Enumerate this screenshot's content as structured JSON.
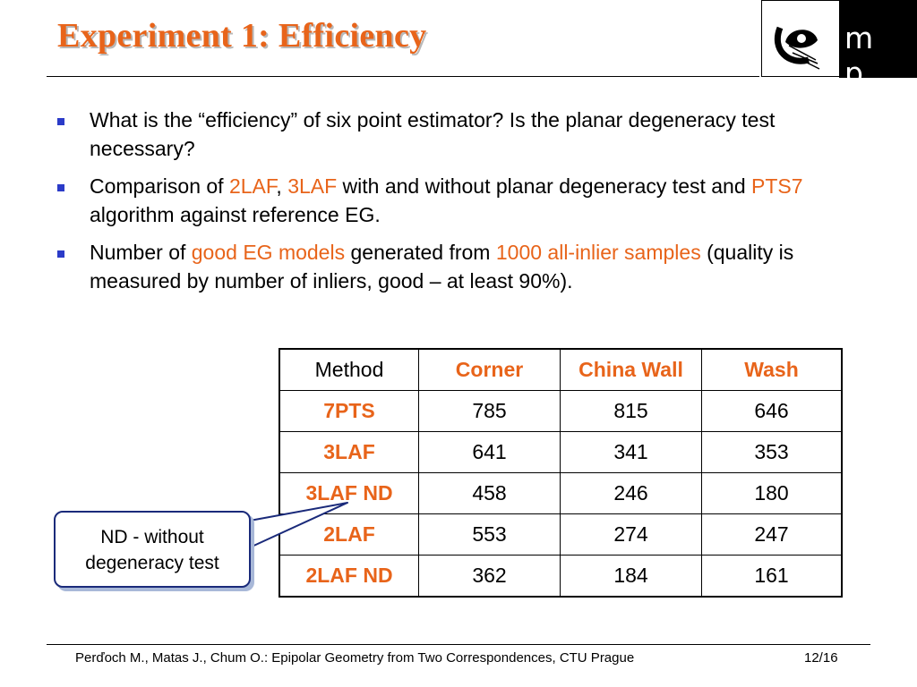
{
  "slide": {
    "title": "Experiment 1: Efficiency",
    "logo_text": "m p",
    "bullets": [
      {
        "parts": [
          {
            "text": "What is the “efficiency” of six point estimator? Is the planar degeneracy test necessary?",
            "hl": false
          }
        ]
      },
      {
        "parts": [
          {
            "text": "Comparison of  ",
            "hl": false
          },
          {
            "text": "2LAF",
            "hl": true
          },
          {
            "text": ", ",
            "hl": false
          },
          {
            "text": "3LAF",
            "hl": true
          },
          {
            "text": " with and without planar degeneracy test and ",
            "hl": false
          },
          {
            "text": "PTS7",
            "hl": true
          },
          {
            "text": " algorithm against reference EG.",
            "hl": false
          }
        ]
      },
      {
        "parts": [
          {
            "text": "Number of ",
            "hl": false
          },
          {
            "text": "good EG models",
            "hl": true
          },
          {
            "text": " generated from ",
            "hl": false
          },
          {
            "text": "1000 all-inlier samples",
            "hl": true
          },
          {
            "text": " (quality is measured by number of inliers, good – at least 90%).",
            "hl": false
          }
        ]
      }
    ],
    "table": {
      "headers": [
        "Method",
        "Corner",
        "China Wall",
        "Wash"
      ],
      "rows": [
        [
          "7PTS",
          "785",
          "815",
          "646"
        ],
        [
          "3LAF",
          "641",
          "341",
          "353"
        ],
        [
          "3LAF ND",
          "458",
          "246",
          "180"
        ],
        [
          "2LAF",
          "553",
          "274",
          "247"
        ],
        [
          "2LAF ND",
          "362",
          "184",
          "161"
        ]
      ]
    },
    "callout": {
      "line1": "ND - without",
      "line2": "degeneracy test"
    },
    "footer": "Perďoch M., Matas J., Chum O.: Epipolar Geometry from Two Correspondences, CTU Prague",
    "page": "12/16"
  },
  "colors": {
    "accent": "#e8641a",
    "bullet": "#2b3bc8",
    "callout_border": "#1a2a7a"
  }
}
